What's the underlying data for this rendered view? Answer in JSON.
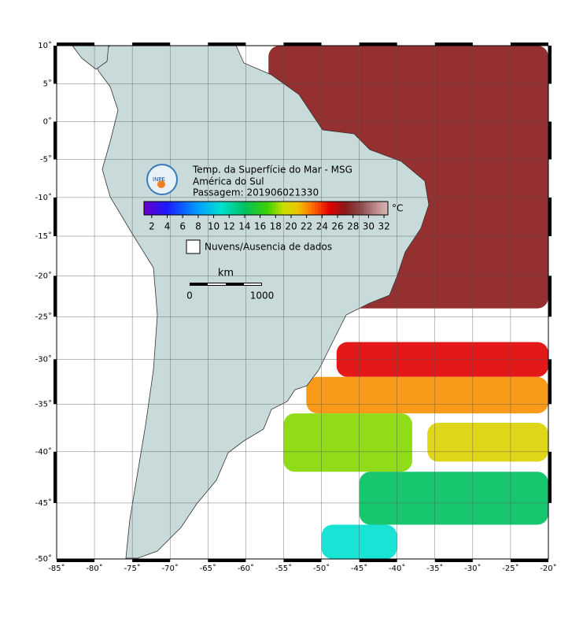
{
  "map": {
    "info": {
      "line1": "Temp. da Superfície do Mar - MSG",
      "line2": "América do Sul",
      "line3": "Passagem: 201906021330"
    },
    "logo": "INPE",
    "colorbar": {
      "unit": "°C",
      "lim": [
        1,
        32.5
      ],
      "ticks": [
        2,
        4,
        6,
        8,
        10,
        12,
        14,
        16,
        18,
        20,
        22,
        24,
        26,
        28,
        30,
        32
      ]
    },
    "legend": "Nuvens/Ausencia de dados",
    "scale": {
      "unit": "km",
      "start": "0",
      "end": "1000"
    },
    "lonlim": [
      -85,
      -20
    ],
    "latlim": [
      -50,
      10
    ],
    "lon_ticks": [
      {
        "value": -85,
        "label": "-85˚"
      },
      {
        "value": -80,
        "label": "-80˚"
      },
      {
        "value": -75,
        "label": "-75˚"
      },
      {
        "value": -70,
        "label": "-70˚"
      },
      {
        "value": -65,
        "label": "-65˚"
      },
      {
        "value": -60,
        "label": "-60˚"
      },
      {
        "value": -55,
        "label": "-55˚"
      },
      {
        "value": -50,
        "label": "-50˚"
      },
      {
        "value": -45,
        "label": "-45˚"
      },
      {
        "value": -40,
        "label": "-40˚"
      },
      {
        "value": -35,
        "label": "-35˚"
      },
      {
        "value": -30,
        "label": "-30˚"
      },
      {
        "value": -25,
        "label": "-25˚"
      },
      {
        "value": -20,
        "label": "-20˚"
      }
    ],
    "lat_ticks": [
      {
        "value": 10,
        "label": "10˚"
      },
      {
        "value": 5,
        "label": "5˚"
      },
      {
        "value": 0,
        "label": "0˚"
      },
      {
        "value": -5,
        "label": "-5˚"
      },
      {
        "value": -10,
        "label": "-10˚"
      },
      {
        "value": -15,
        "label": "-15˚"
      },
      {
        "value": -20,
        "label": "-20˚"
      },
      {
        "value": -25,
        "label": "-25˚"
      },
      {
        "value": -30,
        "label": "-30˚"
      },
      {
        "value": -35,
        "label": "-35˚"
      },
      {
        "value": -40,
        "label": "-40˚"
      },
      {
        "value": -45,
        "label": "-45˚"
      },
      {
        "value": -50,
        "label": "-50˚"
      }
    ],
    "sst_regions": [
      {
        "lon": [
          -57,
          -20
        ],
        "lat": [
          10,
          -24
        ],
        "value": 27
      },
      {
        "lon": [
          -48,
          -20
        ],
        "lat": [
          -28,
          -32
        ],
        "value": 25
      },
      {
        "lon": [
          -52,
          -20
        ],
        "lat": [
          -32,
          -36
        ],
        "value": 22
      },
      {
        "lon": [
          -55,
          -38
        ],
        "lat": [
          -36,
          -42
        ],
        "value": 18
      },
      {
        "lon": [
          -36,
          -20
        ],
        "lat": [
          -37,
          -41
        ],
        "value": 20
      },
      {
        "lon": [
          -45,
          -20
        ],
        "lat": [
          -42,
          -47
        ],
        "value": 14
      },
      {
        "lon": [
          -50,
          -40
        ],
        "lat": [
          -47,
          -50
        ],
        "value": 11
      }
    ]
  }
}
